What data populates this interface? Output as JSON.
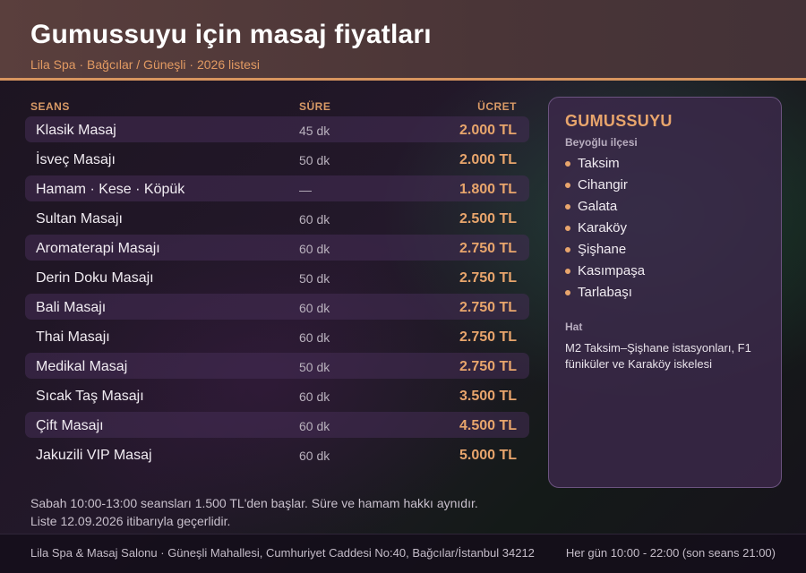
{
  "header": {
    "title": "Gumussuyu için masaj fiyatları",
    "subtitle": "Lila Spa · Bağcılar / Güneşli · 2026 listesi"
  },
  "table": {
    "columns": {
      "name": "SEANS",
      "duration": "SÜRE",
      "price": "ÜCRET"
    },
    "rows": [
      {
        "name": "Klasik Masaj",
        "duration": "45 dk",
        "price": "2.000 TL"
      },
      {
        "name": "İsveç Masajı",
        "duration": "50 dk",
        "price": "2.000 TL"
      },
      {
        "name": "Hamam · Kese · Köpük",
        "duration": "—",
        "price": "1.800 TL"
      },
      {
        "name": "Sultan Masajı",
        "duration": "60 dk",
        "price": "2.500 TL"
      },
      {
        "name": "Aromaterapi Masajı",
        "duration": "60 dk",
        "price": "2.750 TL"
      },
      {
        "name": "Derin Doku Masajı",
        "duration": "50 dk",
        "price": "2.750 TL"
      },
      {
        "name": "Bali Masajı",
        "duration": "60 dk",
        "price": "2.750 TL"
      },
      {
        "name": "Thai Masajı",
        "duration": "60 dk",
        "price": "2.750 TL"
      },
      {
        "name": "Medikal Masaj",
        "duration": "50 dk",
        "price": "2.750 TL"
      },
      {
        "name": "Sıcak Taş Masajı",
        "duration": "60 dk",
        "price": "3.500 TL"
      },
      {
        "name": "Çift Masajı",
        "duration": "60 dk",
        "price": "4.500 TL"
      },
      {
        "name": "Jakuzili VIP Masaj",
        "duration": "60 dk",
        "price": "5.000 TL"
      }
    ]
  },
  "panel": {
    "title": "GUMUSSUYU",
    "subtitle": "Beyoğlu ilçesi",
    "neighborhoods": [
      "Taksim",
      "Cihangir",
      "Galata",
      "Karaköy",
      "Şişhane",
      "Kasımpaşa",
      "Tarlabaşı"
    ],
    "transit_label": "Hat",
    "transit_text": "M2 Taksim–Şişhane istasyonları, F1 füniküler ve Karaköy iskelesi"
  },
  "note": {
    "line1": "Sabah 10:00-13:00 seansları 1.500 TL'den başlar. Süre ve hamam hakkı aynıdır.",
    "line2": "Liste 12.09.2026 itibarıyla geçerlidir."
  },
  "footer": {
    "address": "Lila Spa & Masaj Salonu · Güneşli Mahallesi, Cumhuriyet Caddesi No:40, Bağcılar/İstanbul 34212",
    "hours": "Her gün 10:00 - 22:00 (son seans 21:00)"
  },
  "colors": {
    "accent": "#e8a56c",
    "header_bg": "#5a3f3d",
    "panel_bg": "#3c284b"
  },
  "icons": {
    "list_bullet": "bullet-dot-icon"
  }
}
